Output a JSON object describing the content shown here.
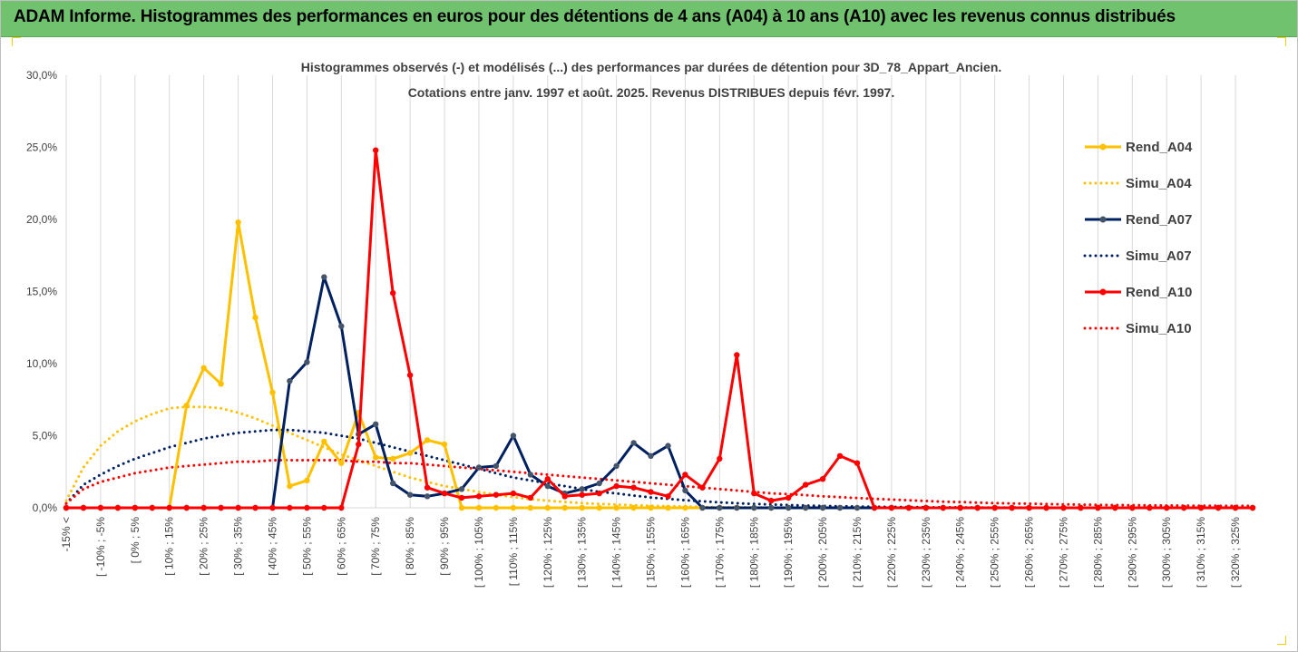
{
  "header": {
    "title": "ADAM Informe. Histogrammes des performances en euros pour des détentions de 4 ans (A04) à 10 ans (A10) avec les revenus connus distribués"
  },
  "colors": {
    "a04": "#ffc000",
    "a07": "#002060",
    "a10": "#ff0000",
    "marker_a07": "#44546a",
    "grid": "#d9d9d9",
    "header_bg": "#70c26f"
  },
  "chart_data": {
    "type": "line",
    "subtitle_lines": [
      "Histogrammes observés (-) et modélisés (...) des performances par durées de détention pour 3D_78_Appart_Ancien.",
      "Cotations entre janv. 1997 et août. 2025. Revenus DISTRIBUES depuis févr. 1997."
    ],
    "y_tick_labels": [
      "0,0%",
      "5,0%",
      "10,0%",
      "15,0%",
      "20,0%",
      "25,0%",
      "30,0%"
    ],
    "ylim": [
      0,
      30
    ],
    "x_tick_labels": [
      "-15% <",
      "[ -10% ; -5%",
      "[ 0% ; 5%",
      "[ 10% ; 15%",
      "[ 20% ; 25%",
      "[ 30% ; 35%",
      "[ 40% ; 45%",
      "[ 50% ; 55%",
      "[ 60% ; 65%",
      "[ 70% ; 75%",
      "[ 80% ; 85%",
      "[ 90% ; 95%",
      "[ 100% ; 105%",
      "[ 110% ; 115%",
      "[ 120% ; 125%",
      "[ 130% ; 135%",
      "[ 140% ; 145%",
      "[ 150% ; 155%",
      "[ 160% ; 165%",
      "[ 170% ; 175%",
      "[ 180% ; 185%",
      "[ 190% ; 195%",
      "[ 200% ; 205%",
      "[ 210% ; 215%",
      "[ 220% ; 225%",
      "[ 230% ; 235%",
      "[ 240% ; 245%",
      "[ 250% ; 255%",
      "[ 260% ; 265%",
      "[ 270% ; 275%",
      "[ 280% ; 285%",
      "[ 290% ; 295%",
      "[ 300% ; 305%",
      "[ 310% ; 315%",
      "[ 320% ; 325%"
    ],
    "n_bins": 70,
    "grid": true,
    "legend_position": "right",
    "series": [
      {
        "name": "Rend_A04",
        "style": "solid",
        "color": "#ffc000",
        "marker": true,
        "values": [
          0,
          0,
          0,
          0,
          0,
          0,
          0,
          7.1,
          9.7,
          8.6,
          19.8,
          13.2,
          8.0,
          1.5,
          1.9,
          4.6,
          3.1,
          6.6,
          3.5,
          3.4,
          3.8,
          4.7,
          4.4,
          0,
          0,
          0,
          0,
          0,
          0,
          0,
          0,
          0,
          0,
          0,
          0,
          0,
          0,
          0,
          0,
          0,
          0,
          0,
          0,
          0,
          0,
          0,
          0,
          0,
          0,
          0,
          0,
          0,
          0,
          0,
          0,
          0,
          0,
          0,
          0,
          0,
          0,
          0,
          0,
          0,
          0,
          0,
          0,
          0,
          0,
          0
        ]
      },
      {
        "name": "Simu_A04",
        "style": "dotted",
        "color": "#ffc000",
        "marker": false,
        "values": [
          0.5,
          2.8,
          4.3,
          5.3,
          6.0,
          6.5,
          6.9,
          7.0,
          7.0,
          6.9,
          6.6,
          6.2,
          5.7,
          5.2,
          4.7,
          4.2,
          3.7,
          3.3,
          2.9,
          2.5,
          2.1,
          1.8,
          1.5,
          1.3,
          1.1,
          0.9,
          0.75,
          0.6,
          0.5,
          0.4,
          0.33,
          0.27,
          0.22,
          0.18,
          0.14,
          0.11,
          0.09,
          0.07,
          0.05,
          0.04,
          0.03,
          0.02,
          0.02,
          0.01,
          0.01,
          0,
          0,
          0,
          0,
          0,
          0,
          0,
          0,
          0,
          0,
          0,
          0,
          0,
          0,
          0,
          0,
          0,
          0,
          0,
          0,
          0,
          0,
          0,
          0,
          0
        ]
      },
      {
        "name": "Rend_A07",
        "style": "solid",
        "color": "#002060",
        "marker": true,
        "values": [
          0,
          0,
          0,
          0,
          0,
          0,
          0,
          0,
          0,
          0,
          0,
          0,
          0,
          8.8,
          10.1,
          16.0,
          12.6,
          5.1,
          5.8,
          1.7,
          0.9,
          0.8,
          1.0,
          1.3,
          2.8,
          2.9,
          5.0,
          2.3,
          1.5,
          1.0,
          1.3,
          1.7,
          2.9,
          4.5,
          3.6,
          4.3,
          1.2,
          0,
          0,
          0,
          0,
          0,
          0,
          0,
          0,
          0,
          0,
          0,
          0,
          0,
          0,
          0,
          0,
          0,
          0,
          0,
          0,
          0,
          0,
          0,
          0,
          0,
          0,
          0,
          0,
          0,
          0,
          0,
          0,
          0
        ]
      },
      {
        "name": "Simu_A07",
        "style": "dotted",
        "color": "#002060",
        "marker": false,
        "values": [
          0.3,
          1.6,
          2.3,
          2.9,
          3.4,
          3.8,
          4.2,
          4.5,
          4.8,
          5.0,
          5.2,
          5.3,
          5.4,
          5.4,
          5.3,
          5.2,
          5.0,
          4.8,
          4.5,
          4.2,
          3.9,
          3.6,
          3.3,
          3.0,
          2.7,
          2.4,
          2.1,
          1.9,
          1.7,
          1.5,
          1.3,
          1.1,
          1.0,
          0.85,
          0.72,
          0.62,
          0.53,
          0.45,
          0.38,
          0.32,
          0.27,
          0.23,
          0.19,
          0.16,
          0.13,
          0.11,
          0.09,
          0.07,
          0.06,
          0.05,
          0.04,
          0.03,
          0.03,
          0.02,
          0.02,
          0.01,
          0.01,
          0,
          0,
          0,
          0,
          0,
          0,
          0,
          0,
          0,
          0,
          0,
          0,
          0
        ]
      },
      {
        "name": "Rend_A10",
        "style": "solid",
        "color": "#ff0000",
        "marker": true,
        "values": [
          0,
          0,
          0,
          0,
          0,
          0,
          0,
          0,
          0,
          0,
          0,
          0,
          0,
          0,
          0,
          0,
          0,
          4.4,
          24.8,
          14.9,
          9.2,
          1.4,
          1.0,
          0.7,
          0.8,
          0.9,
          1.0,
          0.7,
          2.0,
          0.8,
          0.9,
          1.0,
          1.5,
          1.4,
          1.1,
          0.8,
          2.3,
          1.4,
          3.4,
          10.6,
          1.0,
          0.5,
          0.7,
          1.6,
          2.0,
          3.6,
          3.1,
          0,
          0,
          0,
          0,
          0,
          0,
          0,
          0,
          0,
          0,
          0,
          0,
          0,
          0,
          0,
          0,
          0,
          0,
          0,
          0,
          0,
          0,
          0
        ]
      },
      {
        "name": "Simu_A10",
        "style": "dotted",
        "color": "#ff0000",
        "marker": false,
        "values": [
          0.3,
          1.3,
          1.8,
          2.1,
          2.4,
          2.6,
          2.8,
          2.9,
          3.0,
          3.1,
          3.2,
          3.2,
          3.3,
          3.3,
          3.3,
          3.3,
          3.3,
          3.2,
          3.2,
          3.1,
          3.1,
          3.0,
          2.9,
          2.8,
          2.7,
          2.6,
          2.5,
          2.4,
          2.3,
          2.2,
          2.1,
          2.0,
          1.9,
          1.8,
          1.7,
          1.6,
          1.5,
          1.4,
          1.3,
          1.2,
          1.1,
          1.0,
          0.95,
          0.88,
          0.8,
          0.74,
          0.68,
          0.62,
          0.57,
          0.52,
          0.47,
          0.43,
          0.4,
          0.36,
          0.33,
          0.3,
          0.28,
          0.26,
          0.24,
          0.22,
          0.2,
          0.19,
          0.18,
          0.17,
          0.16,
          0.15,
          0.14,
          0.14,
          0.13,
          0.13
        ]
      }
    ]
  }
}
